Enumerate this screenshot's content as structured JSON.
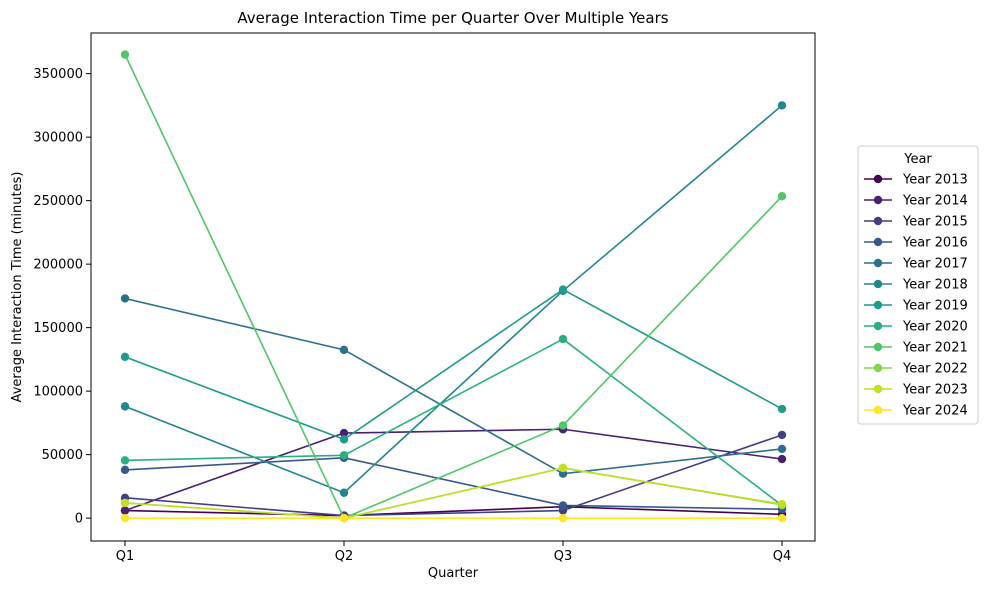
{
  "chart_data": {
    "type": "line",
    "title": "Average Interaction Time per Quarter Over Multiple Years",
    "xlabel": "Quarter",
    "ylabel": "Average Interaction Time (minutes)",
    "categories": [
      "Q1",
      "Q2",
      "Q3",
      "Q4"
    ],
    "ylim": [
      -18000,
      382000
    ],
    "yticks": [
      0,
      50000,
      100000,
      150000,
      200000,
      250000,
      300000,
      350000
    ],
    "grid": false,
    "legend_title": "Year",
    "legend_position": "right",
    "series": [
      {
        "name": "Year 2013",
        "color": "#440154",
        "values": [
          6000,
          2000,
          9000,
          3000
        ]
      },
      {
        "name": "Year 2014",
        "color": "#482173",
        "values": [
          6000,
          67000,
          70000,
          46500
        ]
      },
      {
        "name": "Year 2015",
        "color": "#433e85",
        "values": [
          16000,
          2000,
          6000,
          65500
        ]
      },
      {
        "name": "Year 2016",
        "color": "#38588c",
        "values": [
          38000,
          47500,
          10000,
          7000
        ]
      },
      {
        "name": "Year 2017",
        "color": "#2d708e",
        "values": [
          173000,
          132500,
          35000,
          54500
        ]
      },
      {
        "name": "Year 2018",
        "color": "#25858e",
        "values": [
          88000,
          20000,
          179000,
          325000
        ]
      },
      {
        "name": "Year 2019",
        "color": "#1e9b8a",
        "values": [
          127000,
          62000,
          180000,
          86000
        ]
      },
      {
        "name": "Year 2020",
        "color": "#2ab07f",
        "values": [
          45500,
          49500,
          141000,
          10000
        ]
      },
      {
        "name": "Year 2021",
        "color": "#52c569",
        "values": [
          365000,
          0,
          73000,
          253500
        ]
      },
      {
        "name": "Year 2022",
        "color": "#86d549",
        "values": [
          12000,
          0,
          39500,
          10500
        ]
      },
      {
        "name": "Year 2023",
        "color": "#c2df23",
        "values": [
          12000,
          0,
          39500,
          11000
        ]
      },
      {
        "name": "Year 2024",
        "color": "#fde725",
        "values": [
          0,
          0,
          0,
          0
        ]
      }
    ]
  }
}
